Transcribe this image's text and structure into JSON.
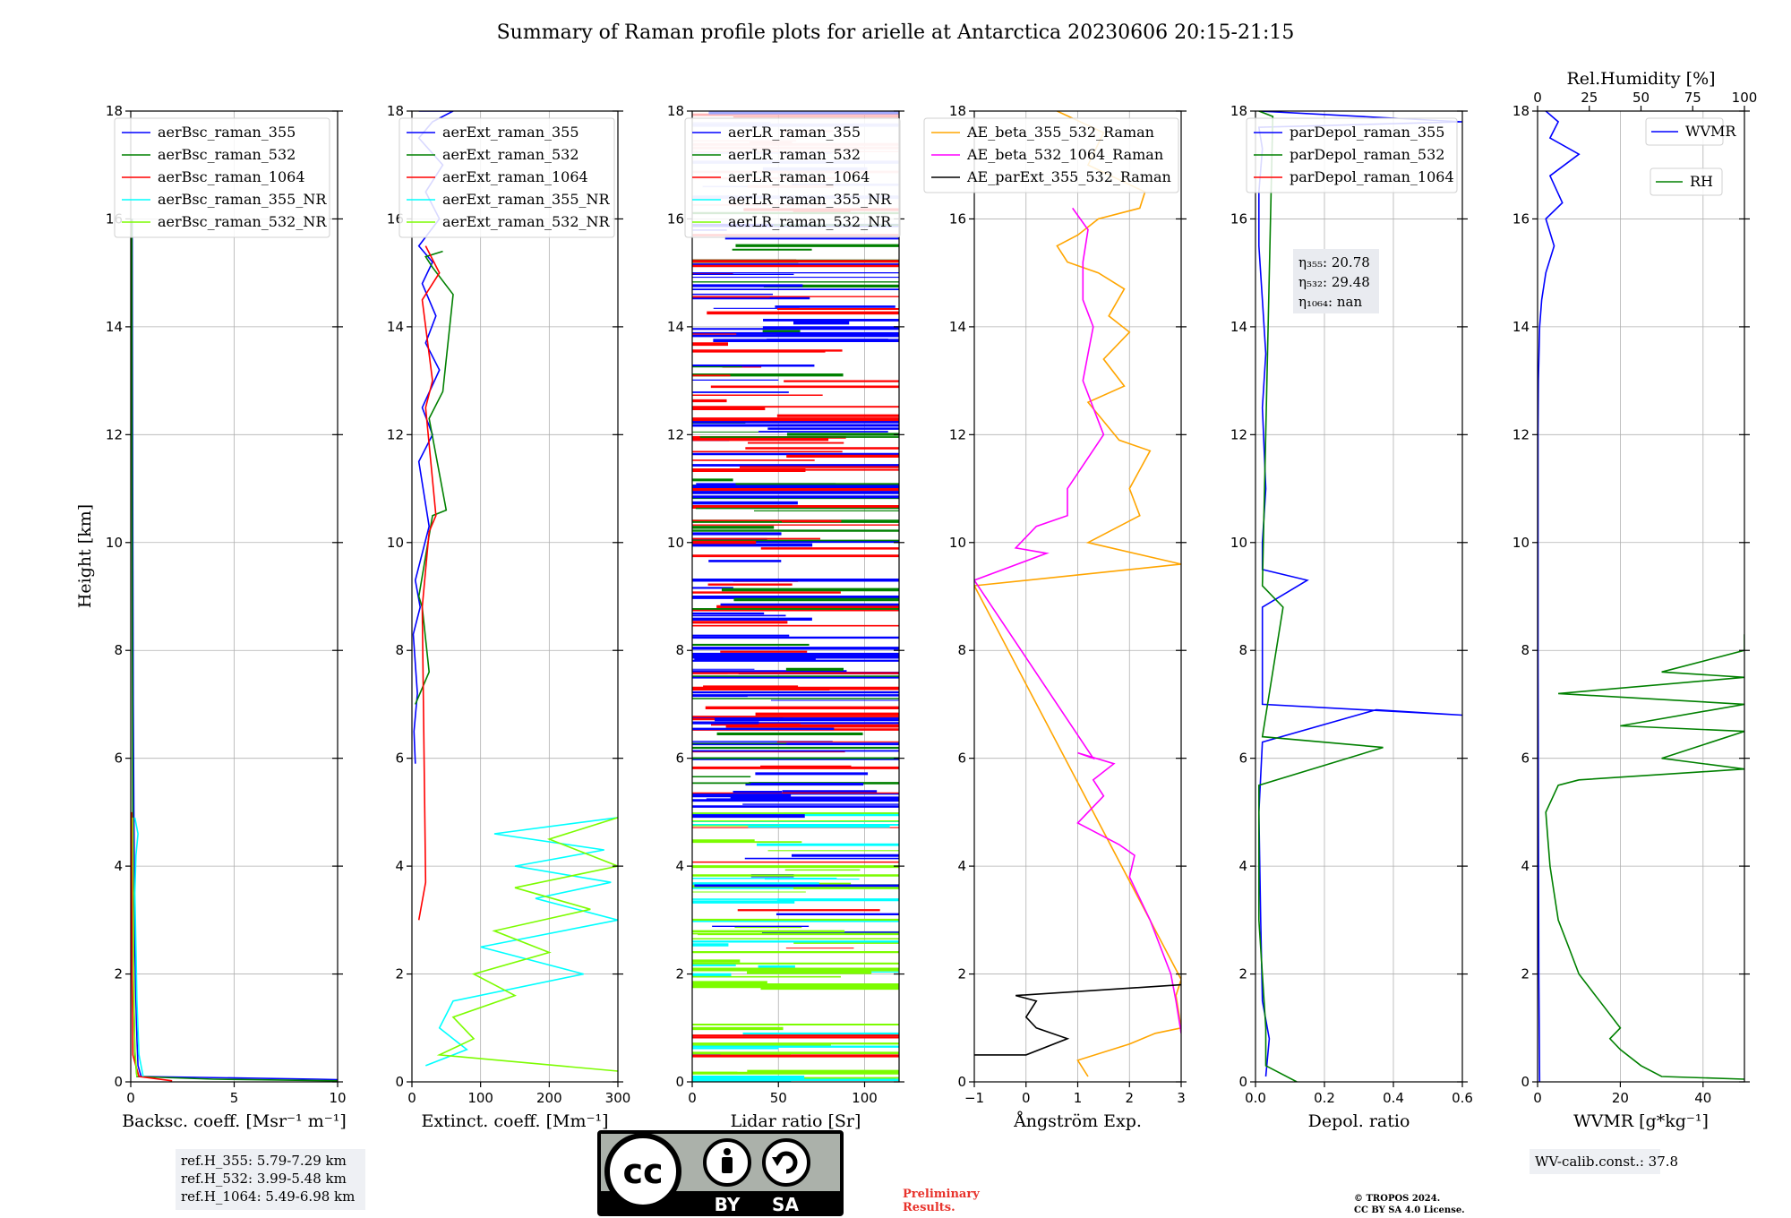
{
  "title": "Summary of Raman profile plots for arielle at Antarctica 20230606 20:15-21:15",
  "ylabel": "Height [km]",
  "height_ticks": [
    0,
    2,
    4,
    6,
    8,
    10,
    12,
    14,
    16,
    18
  ],
  "colors": {
    "blue": "#0000ff",
    "green": "#008000",
    "red": "#ff0000",
    "cyan": "#00ffff",
    "lightgreen": "#7cfc00",
    "orange": "#ffa500",
    "magenta": "#ff00ff",
    "black": "#000000"
  },
  "chart_data": [
    {
      "type": "line",
      "id": "bsc",
      "xlabel": "Backsc. coeff. [Msr⁻¹ m⁻¹]",
      "xlim": [
        0,
        10
      ],
      "xticks": [
        0,
        5,
        10
      ],
      "ylim": [
        0,
        18
      ],
      "grid": true,
      "legend": "top-right",
      "series": [
        {
          "name": "aerBsc_raman_355",
          "color": "#0000ff",
          "x": [
            12,
            9,
            0.5,
            0.35,
            0.3,
            0.25,
            0.2,
            0.18,
            0.15,
            0.12,
            0.1,
            0.08,
            0.07
          ],
          "y": [
            0.02,
            0.05,
            0.1,
            0.3,
            0.8,
            1.5,
            2.5,
            3.5,
            5,
            7,
            10,
            14,
            16
          ]
        },
        {
          "name": "aerBsc_raman_532",
          "color": "#008000",
          "x": [
            10,
            4,
            0.3,
            0.2,
            0.15,
            0.12,
            0.1,
            0.08,
            0.06,
            0.05
          ],
          "y": [
            0.02,
            0.05,
            0.1,
            0.5,
            1.5,
            3,
            5,
            8,
            12,
            16
          ]
        },
        {
          "name": "aerBsc_raman_1064",
          "color": "#ff0000",
          "x": [
            2,
            0.4,
            0.1,
            0.06,
            0.05,
            0.04
          ],
          "y": [
            0.02,
            0.1,
            0.5,
            2,
            4,
            5
          ]
        },
        {
          "name": "aerBsc_raman_355_NR",
          "color": "#00ffff",
          "x": [
            0.6,
            0.4,
            0.3,
            0.25,
            0.2,
            0.25,
            0.35,
            0.2
          ],
          "y": [
            0.1,
            0.5,
            1.5,
            2.5,
            3.5,
            4.2,
            4.6,
            4.9
          ]
        },
        {
          "name": "aerBsc_raman_532_NR",
          "color": "#7cfc00",
          "x": [
            0.3,
            0.2,
            0.15,
            0.12,
            0.1
          ],
          "y": [
            0.1,
            0.6,
            1.5,
            3,
            4.9
          ]
        }
      ],
      "info": [
        "ref.H_355: 5.79-7.29 km",
        "ref.H_532: 3.99-5.48 km",
        "ref.H_1064: 5.49-6.98 km"
      ]
    },
    {
      "type": "line",
      "id": "ext",
      "xlabel": "Extinct. coeff. [Mm⁻¹]",
      "xlim": [
        0,
        300
      ],
      "xticks": [
        0,
        100,
        200,
        300
      ],
      "ylim": [
        0,
        18
      ],
      "grid": true,
      "legend": "top-right",
      "series": [
        {
          "name": "aerExt_raman_355",
          "color": "#0000ff",
          "x": [
            5,
            3,
            8,
            2,
            12,
            5,
            25,
            10,
            30,
            15,
            40,
            20,
            35,
            15,
            30,
            10,
            40,
            20,
            45,
            10,
            30,
            60,
            10
          ],
          "y": [
            5.9,
            6.5,
            7.2,
            8.3,
            8.8,
            9.3,
            10.3,
            11.5,
            12.0,
            12.5,
            13.2,
            13.7,
            14.2,
            14.8,
            15.2,
            15.5,
            16.0,
            16.5,
            17.0,
            17.5,
            17.8,
            18.0,
            18.0
          ]
        },
        {
          "name": "aerExt_raman_532",
          "color": "#008000",
          "x": [
            5,
            25,
            15,
            10,
            30,
            50,
            25,
            45,
            60,
            30,
            20,
            45
          ],
          "y": [
            7.0,
            7.6,
            8.8,
            9.0,
            10.5,
            10.6,
            12.3,
            12.8,
            14.6,
            15.1,
            15.3,
            15.4
          ]
        },
        {
          "name": "aerExt_raman_1064",
          "color": "#ff0000",
          "x": [
            10,
            20,
            15,
            25,
            35,
            20,
            30,
            15,
            40,
            20
          ],
          "y": [
            3.0,
            3.7,
            8.8,
            10.2,
            10.5,
            12.5,
            13.0,
            14.5,
            15.0,
            15.5
          ]
        },
        {
          "name": "aerExt_raman_355_NR",
          "color": "#00ffff",
          "x": [
            300,
            120,
            280,
            150,
            290,
            180,
            300,
            100,
            250,
            60,
            40,
            80,
            20
          ],
          "y": [
            4.9,
            4.6,
            4.3,
            4.0,
            3.7,
            3.4,
            3.0,
            2.5,
            2.0,
            1.5,
            1.0,
            0.6,
            0.3
          ]
        },
        {
          "name": "aerExt_raman_532_NR",
          "color": "#7cfc00",
          "x": [
            300,
            200,
            300,
            150,
            260,
            120,
            200,
            90,
            150,
            60,
            90,
            40,
            300
          ],
          "y": [
            4.9,
            4.5,
            4.0,
            3.6,
            3.2,
            2.8,
            2.4,
            2.0,
            1.6,
            1.2,
            0.8,
            0.5,
            0.2
          ]
        }
      ]
    },
    {
      "type": "line",
      "id": "lr",
      "xlabel": "Lidar ratio [Sr]",
      "xlim": [
        0,
        120
      ],
      "xticks": [
        0,
        50,
        100
      ],
      "ylim": [
        0,
        18
      ],
      "grid": true,
      "legend": "top-right",
      "series": [
        {
          "name": "aerLR_raman_355",
          "color": "#0000ff",
          "x": [],
          "y": []
        },
        {
          "name": "aerLR_raman_532",
          "color": "#008000",
          "x": [],
          "y": []
        },
        {
          "name": "aerLR_raman_1064",
          "color": "#ff0000",
          "x": [],
          "y": []
        },
        {
          "name": "aerLR_raman_355_NR",
          "color": "#00ffff",
          "x": [],
          "y": []
        },
        {
          "name": "aerLR_raman_532_NR",
          "color": "#7cfc00",
          "x": [],
          "y": []
        }
      ]
    },
    {
      "type": "line",
      "id": "ae",
      "xlabel": "Ångström Exp.",
      "xlim": [
        -1,
        3
      ],
      "xticks": [
        -1,
        0,
        1,
        2,
        3
      ],
      "ylim": [
        0,
        18
      ],
      "grid": true,
      "legend": "top-right",
      "series": [
        {
          "name": "AE_beta_355_532_Raman",
          "color": "#ffa500",
          "x": [
            1.2,
            1.0,
            2.0,
            2.5,
            3.0,
            2.9,
            3.0,
            -1.0,
            3.0,
            1.2,
            2.2,
            2.0,
            2.4,
            1.8,
            1.2,
            1.9,
            1.5,
            2.0,
            1.6,
            1.9,
            1.4,
            0.8,
            0.6,
            1.0,
            1.4,
            2.2,
            2.3,
            1.2,
            1.5,
            0.6
          ],
          "y": [
            0.1,
            0.4,
            0.7,
            0.9,
            1.0,
            1.6,
            1.9,
            9.2,
            9.6,
            10.0,
            10.5,
            11.0,
            11.7,
            11.9,
            12.6,
            12.9,
            13.4,
            13.9,
            14.2,
            14.7,
            15.0,
            15.2,
            15.5,
            15.7,
            16.0,
            16.2,
            16.5,
            17.0,
            17.6,
            18.0
          ]
        },
        {
          "name": "AE_beta_532_1064_Raman",
          "color": "#ff00ff",
          "x": [
            3.0,
            2.9,
            2.8,
            2.4,
            2.0,
            2.1,
            1.8,
            1.0,
            1.5,
            1.3,
            1.7,
            1.0,
            1.3,
            -1.0,
            0.4,
            -0.2,
            0.2,
            0.8,
            0.8,
            1.5,
            1.3,
            1.1,
            1.2,
            1.3,
            1.1,
            1.1,
            1.2,
            0.9
          ],
          "y": [
            0.9,
            1.5,
            2.0,
            3.0,
            3.8,
            4.2,
            4.4,
            4.8,
            5.3,
            5.6,
            5.9,
            6.1,
            6.0,
            9.3,
            9.8,
            9.9,
            10.3,
            10.5,
            11.0,
            12.0,
            12.5,
            13.0,
            13.5,
            14.0,
            14.5,
            15.2,
            15.8,
            16.2
          ]
        },
        {
          "name": "AE_parExt_355_532_Raman",
          "color": "#000000",
          "x": [
            -1.0,
            0.0,
            0.8,
            0.2,
            0.0,
            0.2,
            -0.2,
            3.0
          ],
          "y": [
            0.5,
            0.5,
            0.8,
            1.0,
            1.2,
            1.5,
            1.6,
            1.8
          ]
        }
      ]
    },
    {
      "type": "line",
      "id": "depol",
      "xlabel": "Depol. ratio",
      "xlim": [
        0,
        0.6
      ],
      "xticks": [
        0.0,
        0.2,
        0.4,
        0.6
      ],
      "xtick_labels": [
        "0.0",
        "0.2",
        "0.4",
        "0.6"
      ],
      "ylim": [
        0,
        18
      ],
      "grid": true,
      "legend": "top-right",
      "series": [
        {
          "name": "parDepol_raman_355",
          "color": "#0000ff",
          "x": [
            0.03,
            0.04,
            0.02,
            0.015,
            0.01,
            0.02,
            0.35,
            0.6,
            0.02,
            0.02,
            0.15,
            0.02,
            0.02,
            0.03,
            0.02,
            0.03,
            0.02,
            0.01,
            0.01,
            0.02,
            0.01,
            0.6,
            0.01
          ],
          "y": [
            0.1,
            0.8,
            1.5,
            3.0,
            5.0,
            6.3,
            6.9,
            6.8,
            7.0,
            8.8,
            9.3,
            9.5,
            10.0,
            11.0,
            12.5,
            13.5,
            14.5,
            15.5,
            16.5,
            17.3,
            17.7,
            17.8,
            18.0
          ]
        },
        {
          "name": "parDepol_raman_532",
          "color": "#008000",
          "x": [
            0.12,
            0.03,
            0.03,
            0.01,
            0.01,
            0.37,
            0.02,
            0.08,
            0.02,
            0.05,
            0.01
          ],
          "y": [
            0.0,
            0.3,
            1.0,
            3.0,
            5.5,
            6.2,
            6.4,
            8.8,
            9.2,
            17.9,
            18.0
          ]
        },
        {
          "name": "parDepol_raman_1064",
          "color": "#ff0000",
          "x": [],
          "y": []
        }
      ],
      "annotation": [
        "η₃₅₅: 20.78",
        "η₅₃₂: 29.48",
        "η₁₀₆₄: nan"
      ]
    },
    {
      "type": "line",
      "id": "wv",
      "xlabel": "WVMR [g*kg⁻¹]",
      "xlim": [
        0,
        50
      ],
      "xticks": [
        0,
        20,
        40
      ],
      "ylim": [
        0,
        18
      ],
      "grid": true,
      "x2label": "Rel.Humidity [%]",
      "x2lim": [
        0,
        100
      ],
      "x2ticks": [
        0,
        25,
        50,
        75,
        100
      ],
      "legend": "top-right",
      "series": [
        {
          "name": "WVMR",
          "color": "#0000ff",
          "axis": "bottom",
          "x": [
            0.5,
            0.3,
            0.2,
            0.1,
            0.1,
            0.1,
            0.2,
            0.5,
            1.0,
            2.0,
            4.0,
            2.0,
            6.0,
            3.0,
            10.0,
            3.0,
            5.0,
            2.0
          ],
          "y": [
            0.0,
            2.0,
            5.0,
            8.0,
            10.0,
            12.0,
            13.0,
            14.0,
            14.5,
            15.0,
            15.5,
            16.0,
            16.3,
            16.8,
            17.2,
            17.5,
            17.8,
            18.0
          ]
        },
        {
          "name": "RH",
          "color": "#008000",
          "axis": "top",
          "x": [
            100,
            60,
            50,
            40,
            35,
            40,
            30,
            20,
            15,
            10,
            8,
            6,
            5,
            4,
            10,
            20,
            100,
            60,
            100,
            40,
            100,
            10,
            100,
            60,
            100,
            100
          ],
          "y": [
            0.05,
            0.1,
            0.3,
            0.6,
            0.8,
            1.0,
            1.5,
            2.0,
            2.5,
            3.0,
            3.5,
            4.0,
            4.5,
            5.0,
            5.5,
            5.6,
            5.8,
            6.0,
            6.5,
            6.6,
            7.0,
            7.2,
            7.5,
            7.6,
            8.0,
            8.3
          ]
        }
      ],
      "info": [
        "WV-calib.const.: 37.8"
      ]
    }
  ],
  "footer": {
    "cc_letters": "cc",
    "cc_by": "BY",
    "cc_sa": "SA",
    "preliminary": [
      "Preliminary",
      "Results."
    ],
    "copyright": [
      "© TROPOS 2024.",
      "CC BY SA 4.0 License."
    ]
  }
}
